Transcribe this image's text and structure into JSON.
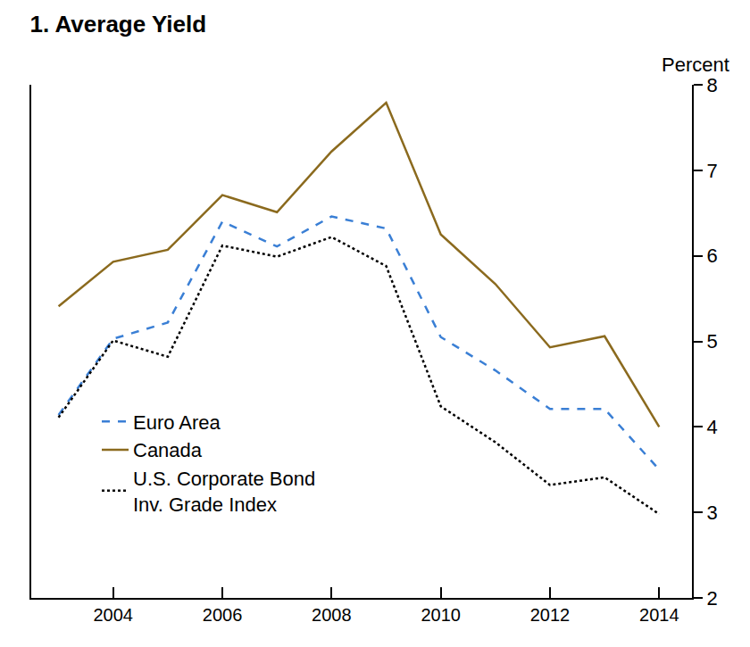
{
  "chart_data": {
    "type": "line",
    "title": "1. Average Yield",
    "y_label": "Percent",
    "x": [
      2003,
      2004,
      2005,
      2006,
      2007,
      2008,
      2009,
      2010,
      2011,
      2012,
      2013,
      2014
    ],
    "series": [
      {
        "name": "Euro Area",
        "color": "#3a7fd5",
        "line_style": "dash",
        "values": [
          4.14,
          5.03,
          5.22,
          6.4,
          6.11,
          6.46,
          6.32,
          5.05,
          4.66,
          4.21,
          4.21,
          3.5
        ]
      },
      {
        "name": "Canada",
        "color": "#8b6a1e",
        "line_style": "solid",
        "values": [
          5.41,
          5.93,
          6.07,
          6.71,
          6.51,
          7.22,
          7.79,
          6.25,
          5.67,
          4.93,
          5.06,
          4.0
        ]
      },
      {
        "name": "U.S. Corporate Bond\nInv. Grade Index",
        "color": "#000000",
        "line_style": "dot",
        "values": [
          4.11,
          5.01,
          4.82,
          6.12,
          5.99,
          6.22,
          5.88,
          4.24,
          3.82,
          3.32,
          3.41,
          2.98
        ]
      }
    ],
    "xlim": [
      2002.5,
      2014.6
    ],
    "xticks": [
      2004,
      2006,
      2008,
      2010,
      2012,
      2014
    ],
    "ylim": [
      2,
      8
    ],
    "yticks": [
      2,
      3,
      4,
      5,
      6,
      7,
      8
    ],
    "grid": false,
    "legend": "lower left"
  }
}
